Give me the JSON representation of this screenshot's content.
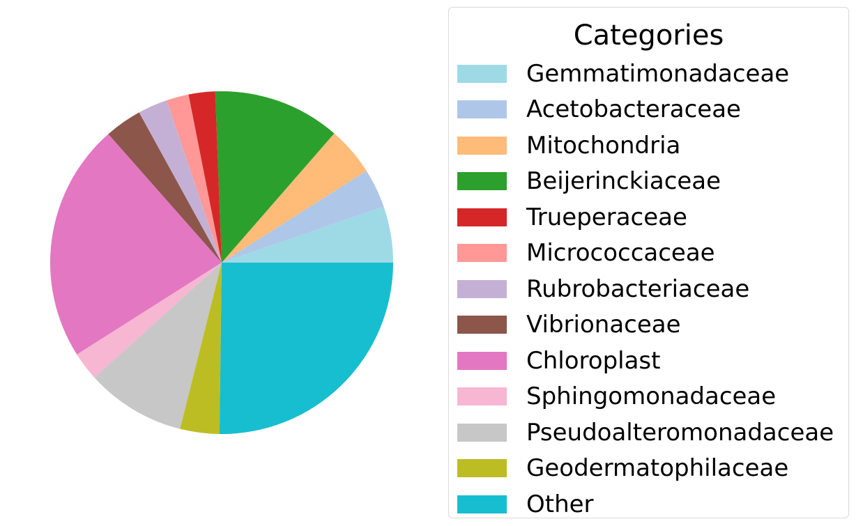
{
  "chart_data": {
    "type": "pie",
    "title": "",
    "legend": {
      "title": "Categories",
      "placement": "right"
    },
    "slices": [
      {
        "label": "Gemmatimonadaceae",
        "value": 5.3,
        "color": "#9edae5"
      },
      {
        "label": "Acetobacteraceae",
        "value": 3.7,
        "color": "#aec7e8"
      },
      {
        "label": "Mitochondria",
        "value": 4.6,
        "color": "#ffbb78"
      },
      {
        "label": "Beijerinckiaceae",
        "value": 12.0,
        "color": "#2ca02c"
      },
      {
        "label": "Trueperaceae",
        "value": 2.5,
        "color": "#d62728"
      },
      {
        "label": "Micrococcaceae",
        "value": 2.1,
        "color": "#ff9896"
      },
      {
        "label": "Rubrobacteriaceae",
        "value": 2.8,
        "color": "#c5b0d5"
      },
      {
        "label": "Vibrionaceae",
        "value": 3.5,
        "color": "#8c564b"
      },
      {
        "label": "Chloroplast",
        "value": 22.5,
        "color": "#e377c2"
      },
      {
        "label": "Sphingomonadaceae",
        "value": 2.7,
        "color": "#f7b6d2"
      },
      {
        "label": "Pseudoalteromonadaceae",
        "value": 9.4,
        "color": "#c7c7c7"
      },
      {
        "label": "Geodermatophilaceae",
        "value": 3.7,
        "color": "#bcbd22"
      },
      {
        "label": "Other",
        "value": 25.2,
        "color": "#17becf"
      }
    ],
    "start_angle": 0,
    "direction": "counterclockwise"
  }
}
